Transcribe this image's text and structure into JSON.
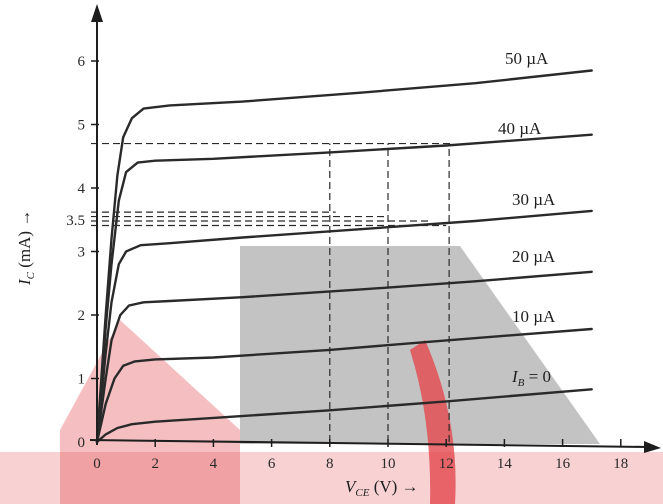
{
  "chart_data": {
    "type": "line",
    "title": "",
    "xlabel": {
      "main": "V",
      "sub": "CE",
      "rest": " (V) →"
    },
    "ylabel": {
      "main": "I",
      "sub": "C",
      "rest": " (mA) →"
    },
    "xlim": [
      0,
      19
    ],
    "ylim": [
      0,
      6.7
    ],
    "x_ticks": [
      0,
      2,
      4,
      6,
      8,
      10,
      12,
      14,
      16,
      18
    ],
    "y_ticks": [
      0,
      1,
      2,
      3,
      4,
      5,
      6
    ],
    "y_tick_extra": {
      "value": 3.5,
      "label": "3.5"
    },
    "grid": false,
    "series": [
      {
        "name": "I_B = 0",
        "label_main": "I",
        "label_sub": "B",
        "label_rest": " = 0",
        "points": [
          [
            0,
            0
          ],
          [
            0.3,
            0.12
          ],
          [
            0.7,
            0.22
          ],
          [
            1.2,
            0.28
          ],
          [
            2,
            0.32
          ],
          [
            4,
            0.38
          ],
          [
            8,
            0.5
          ],
          [
            12,
            0.64
          ],
          [
            17,
            0.83
          ]
        ]
      },
      {
        "name": "10 µA",
        "label": "10 µA",
        "points": [
          [
            0,
            0
          ],
          [
            0.3,
            0.6
          ],
          [
            0.6,
            1.0
          ],
          [
            0.9,
            1.2
          ],
          [
            1.3,
            1.27
          ],
          [
            2,
            1.3
          ],
          [
            4,
            1.33
          ],
          [
            8,
            1.45
          ],
          [
            12,
            1.6
          ],
          [
            17,
            1.78
          ]
        ]
      },
      {
        "name": "20 µA",
        "label": "20 µA",
        "points": [
          [
            0,
            0
          ],
          [
            0.3,
            1.0
          ],
          [
            0.5,
            1.6
          ],
          [
            0.8,
            2.0
          ],
          [
            1.1,
            2.15
          ],
          [
            1.6,
            2.2
          ],
          [
            2.5,
            2.22
          ],
          [
            5,
            2.28
          ],
          [
            9,
            2.4
          ],
          [
            13,
            2.53
          ],
          [
            17,
            2.68
          ]
        ]
      },
      {
        "name": "30 µA",
        "label": "30 µA",
        "points": [
          [
            0,
            0
          ],
          [
            0.3,
            1.4
          ],
          [
            0.5,
            2.2
          ],
          [
            0.75,
            2.8
          ],
          [
            1.0,
            3.0
          ],
          [
            1.5,
            3.1
          ],
          [
            2.5,
            3.13
          ],
          [
            5,
            3.22
          ],
          [
            9,
            3.35
          ],
          [
            13,
            3.48
          ],
          [
            17,
            3.64
          ]
        ]
      },
      {
        "name": "40 µA",
        "label": "40 µA",
        "points": [
          [
            0,
            0
          ],
          [
            0.3,
            1.8
          ],
          [
            0.5,
            2.8
          ],
          [
            0.75,
            3.8
          ],
          [
            1.0,
            4.25
          ],
          [
            1.4,
            4.4
          ],
          [
            2,
            4.43
          ],
          [
            4,
            4.46
          ],
          [
            8,
            4.56
          ],
          [
            12,
            4.67
          ],
          [
            17,
            4.84
          ]
        ]
      },
      {
        "name": "50 µA",
        "label": "50 µA",
        "points": [
          [
            0,
            0
          ],
          [
            0.3,
            2.0
          ],
          [
            0.5,
            3.2
          ],
          [
            0.7,
            4.2
          ],
          [
            0.9,
            4.8
          ],
          [
            1.2,
            5.1
          ],
          [
            1.6,
            5.25
          ],
          [
            2.5,
            5.3
          ],
          [
            5,
            5.36
          ],
          [
            9,
            5.5
          ],
          [
            13,
            5.65
          ],
          [
            17,
            5.85
          ]
        ]
      }
    ],
    "guides": {
      "horizontal": [
        {
          "y": 4.7,
          "x_to": 12.2
        },
        {
          "y": 3.62,
          "x_to": 8.2
        },
        {
          "y": 3.55,
          "x_to": 10.0
        },
        {
          "y": 3.48,
          "x_to": 11.4
        },
        {
          "y": 3.41,
          "x_to": 12.0
        }
      ],
      "vertical": [
        {
          "x": 8.0,
          "y_from": 0,
          "y_to": 4.7
        },
        {
          "x": 10.0,
          "y_from": 0,
          "y_to": 4.7
        },
        {
          "x": 12.1,
          "y_from": 0,
          "y_to": 4.7
        }
      ]
    },
    "background_colors": {
      "watermark_gray": "#b9b9b9",
      "watermark_red": "#e0474c"
    }
  }
}
